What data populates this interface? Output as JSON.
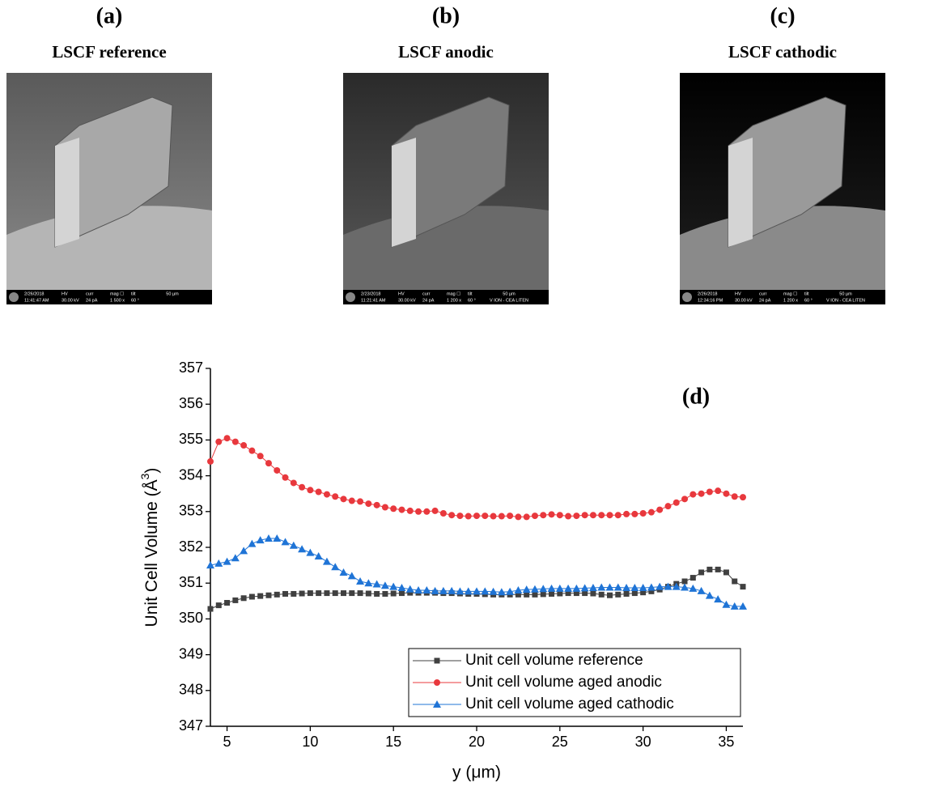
{
  "panels": [
    {
      "label": "(a)",
      "title": "LSCF reference",
      "info": [
        "2/26/2018",
        "11:41:47 AM",
        "HV",
        "30.00 kV",
        "curr",
        "24 pA",
        "mag ☐",
        "1 500 x",
        "tilt",
        "60 °",
        "50 µm"
      ]
    },
    {
      "label": "(b)",
      "title": "LSCF anodic",
      "info": [
        "2/23/2018",
        "11:21:41 AM",
        "HV",
        "30.00 kV",
        "curr",
        "24 pA",
        "mag ☐",
        "1 200 x",
        "tilt",
        "60 °",
        "50 µm",
        "V ION - CEA LITEN"
      ]
    },
    {
      "label": "(c)",
      "title": "LSCF cathodic",
      "info": [
        "2/26/2018",
        "12:34:16 PM",
        "HV",
        "30.00 kV",
        "curr",
        "24 pA",
        "mag ☐",
        "1 200 x",
        "tilt",
        "60 °",
        "50 µm",
        "V ION - CEA LITEN"
      ]
    }
  ],
  "chart_data": {
    "type": "line",
    "annotation": "(d)",
    "xlabel": "y (μm)",
    "ylabel": [
      "Unit Cell Volume (Å",
      "3",
      ")"
    ],
    "xlim": [
      4,
      36
    ],
    "xticks": [
      5,
      10,
      15,
      20,
      25,
      30,
      35
    ],
    "ylim": [
      347,
      357
    ],
    "yticks": [
      347,
      348,
      349,
      350,
      351,
      352,
      353,
      354,
      355,
      356,
      357
    ],
    "x": [
      4,
      4.5,
      5,
      5.5,
      6,
      6.5,
      7,
      7.5,
      8,
      8.5,
      9,
      9.5,
      10,
      10.5,
      11,
      11.5,
      12,
      12.5,
      13,
      13.5,
      14,
      14.5,
      15,
      15.5,
      16,
      16.5,
      17,
      17.5,
      18,
      18.5,
      19,
      19.5,
      20,
      20.5,
      21,
      21.5,
      22,
      22.5,
      23,
      23.5,
      24,
      24.5,
      25,
      25.5,
      26,
      26.5,
      27,
      27.5,
      28,
      28.5,
      29,
      29.5,
      30,
      30.5,
      31,
      31.5,
      32,
      32.5,
      33,
      33.5,
      34,
      34.5,
      35,
      35.5,
      36
    ],
    "legend": "lower-right",
    "series": [
      {
        "name": "Unit cell volume reference",
        "color": "#404040",
        "marker": "square",
        "values": [
          350.28,
          350.38,
          350.45,
          350.52,
          350.58,
          350.62,
          350.64,
          350.66,
          350.68,
          350.7,
          350.7,
          350.71,
          350.72,
          350.72,
          350.72,
          350.72,
          350.72,
          350.72,
          350.72,
          350.71,
          350.7,
          350.7,
          350.71,
          350.72,
          350.73,
          350.73,
          350.73,
          350.73,
          350.72,
          350.72,
          350.71,
          350.7,
          350.7,
          350.69,
          350.68,
          350.68,
          350.68,
          350.68,
          350.68,
          350.68,
          350.69,
          350.7,
          350.71,
          350.72,
          350.72,
          350.72,
          350.71,
          350.68,
          350.66,
          350.68,
          350.7,
          350.72,
          350.74,
          350.77,
          350.82,
          350.9,
          350.98,
          351.05,
          351.15,
          351.3,
          351.38,
          351.38,
          351.3,
          351.05,
          350.9
        ]
      },
      {
        "name": "Unit cell volume aged anodic",
        "color": "#e8383d",
        "marker": "circle",
        "values": [
          354.4,
          354.95,
          355.05,
          354.95,
          354.85,
          354.7,
          354.55,
          354.35,
          354.15,
          353.95,
          353.8,
          353.68,
          353.6,
          353.55,
          353.48,
          353.42,
          353.35,
          353.3,
          353.28,
          353.22,
          353.18,
          353.12,
          353.08,
          353.05,
          353.02,
          353.0,
          353.0,
          353.02,
          352.95,
          352.9,
          352.88,
          352.87,
          352.88,
          352.88,
          352.87,
          352.87,
          352.88,
          352.85,
          352.85,
          352.88,
          352.9,
          352.92,
          352.9,
          352.87,
          352.88,
          352.9,
          352.9,
          352.9,
          352.9,
          352.9,
          352.93,
          352.93,
          352.95,
          352.98,
          353.05,
          353.15,
          353.25,
          353.35,
          353.48,
          353.5,
          353.55,
          353.58,
          353.5,
          353.42,
          353.4
        ]
      },
      {
        "name": "Unit cell volume aged cathodic",
        "color": "#1f74d6",
        "marker": "triangle",
        "values": [
          351.5,
          351.55,
          351.6,
          351.7,
          351.9,
          352.1,
          352.2,
          352.25,
          352.25,
          352.15,
          352.05,
          351.95,
          351.85,
          351.75,
          351.6,
          351.45,
          351.3,
          351.2,
          351.05,
          351.0,
          350.97,
          350.93,
          350.9,
          350.87,
          350.83,
          350.8,
          350.8,
          350.78,
          350.78,
          350.78,
          350.77,
          350.77,
          350.77,
          350.77,
          350.76,
          350.75,
          350.76,
          350.8,
          350.82,
          350.83,
          350.84,
          350.85,
          350.85,
          350.85,
          350.85,
          350.86,
          350.87,
          350.88,
          350.88,
          350.88,
          350.87,
          350.87,
          350.87,
          350.88,
          350.9,
          350.9,
          350.9,
          350.88,
          350.85,
          350.78,
          350.65,
          350.55,
          350.4,
          350.35,
          350.35
        ]
      }
    ]
  }
}
